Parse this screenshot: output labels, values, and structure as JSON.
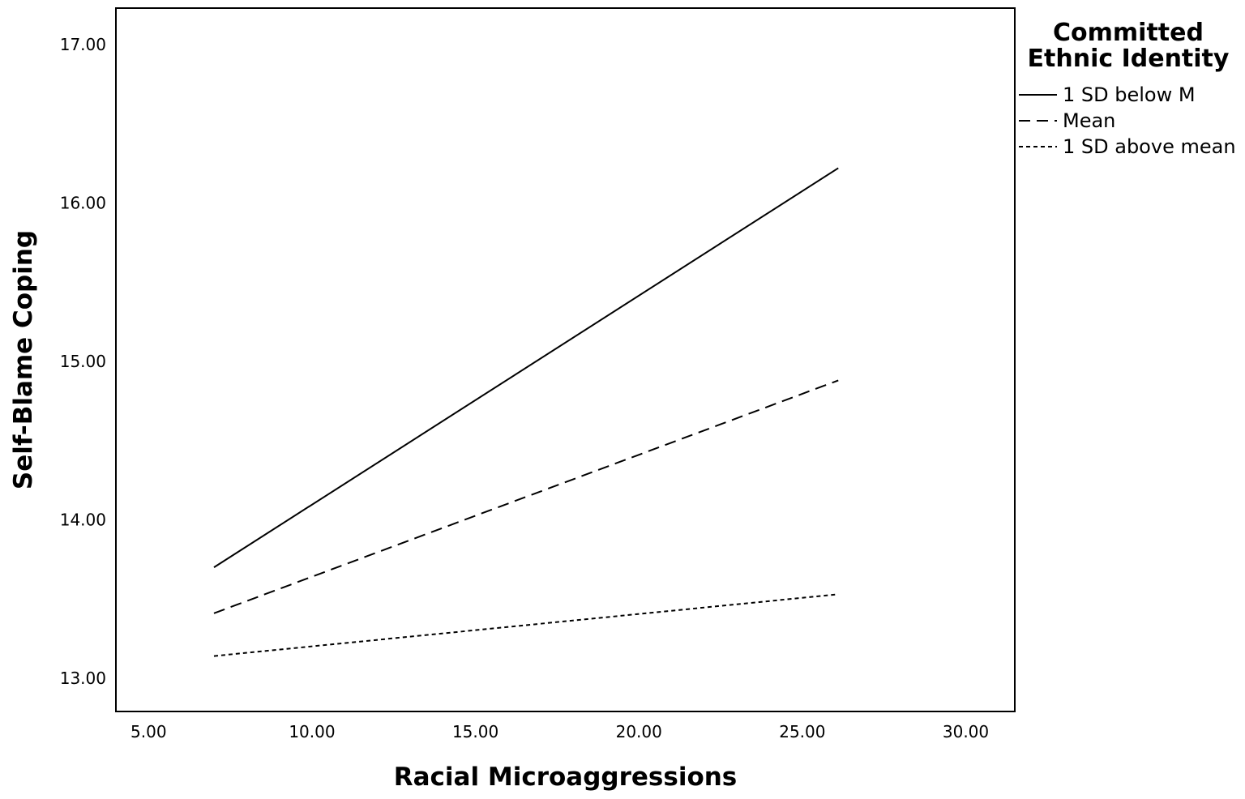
{
  "chart_data": {
    "type": "line",
    "title": "",
    "xlabel": "Racial Microaggressions",
    "ylabel": "Self-Blame Coping",
    "xlim": [
      4.0,
      31.5
    ],
    "ylim": [
      12.79,
      17.23
    ],
    "x_ticks": [
      "5.00",
      "10.00",
      "15.00",
      "20.00",
      "25.00",
      "30.00"
    ],
    "y_ticks": [
      "13.00",
      "14.00",
      "15.00",
      "16.00",
      "17.00"
    ],
    "x_tick_values": [
      5,
      10,
      15,
      20,
      25,
      30
    ],
    "y_tick_values": [
      13,
      14,
      15,
      16,
      17
    ],
    "grid": false,
    "legend": {
      "title": "Committed Ethnic Identity",
      "title_lines": [
        "Committed",
        "Ethnic Identity"
      ],
      "placement": "right-top"
    },
    "series": [
      {
        "name": "1 SD below M",
        "style": "solid",
        "x": [
          7.0,
          26.1
        ],
        "y": [
          13.7,
          16.22
        ]
      },
      {
        "name": "Mean",
        "style": "dashed",
        "x": [
          7.0,
          26.1
        ],
        "y": [
          13.41,
          14.88
        ]
      },
      {
        "name": "1 SD above mean",
        "style": "dotted",
        "x": [
          7.0,
          26.1
        ],
        "y": [
          13.14,
          13.53
        ]
      }
    ]
  },
  "colors": {
    "line": "#000000",
    "frame": "#000000",
    "background": "#ffffff"
  }
}
